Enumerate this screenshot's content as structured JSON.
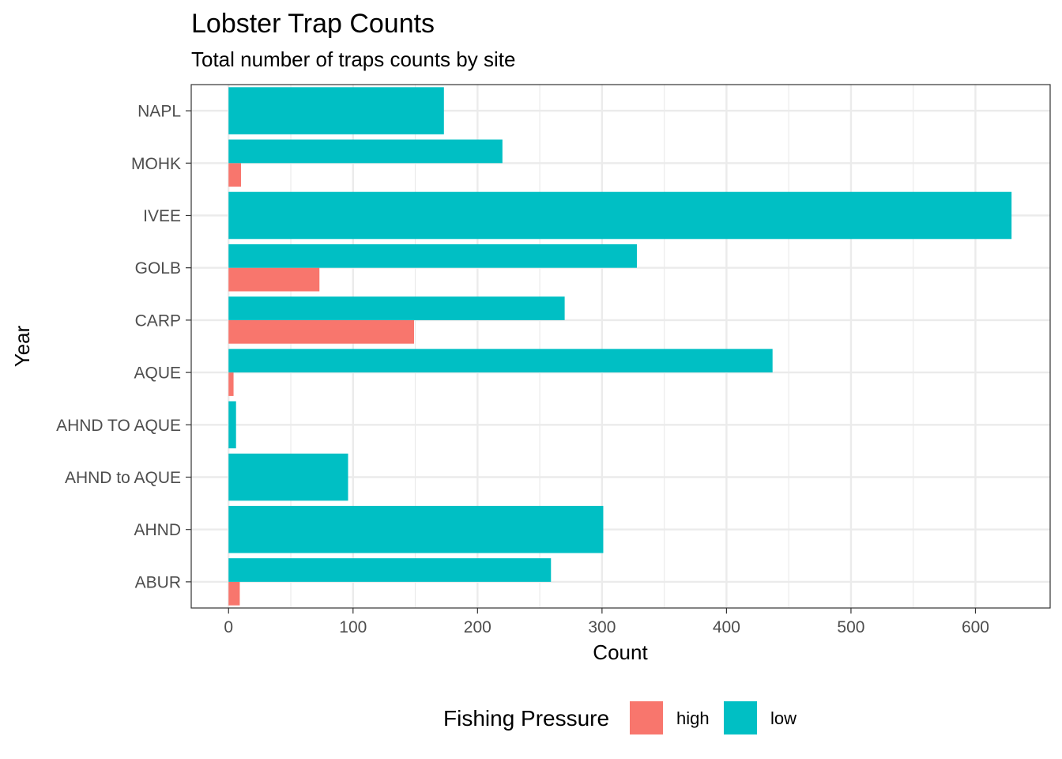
{
  "chart_data": {
    "type": "bar",
    "orientation": "horizontal",
    "position": "dodge",
    "title": "Lobster Trap Counts",
    "subtitle": "Total number of traps counts by site",
    "xlabel": "Count",
    "ylabel": "Year",
    "xlim": [
      -30,
      660
    ],
    "x_ticks": [
      0,
      100,
      200,
      300,
      400,
      500,
      600
    ],
    "grid": true,
    "categories": [
      "ABUR",
      "AHND",
      "AHND to AQUE",
      "AHND TO AQUE",
      "AQUE",
      "CARP",
      "GOLB",
      "IVEE",
      "MOHK",
      "NAPL"
    ],
    "series": [
      {
        "name": "high",
        "color": "#F8766D",
        "values": [
          9,
          null,
          null,
          null,
          4,
          149,
          73,
          null,
          10,
          null
        ]
      },
      {
        "name": "low",
        "color": "#00BFC4",
        "values": [
          259,
          301,
          96,
          6,
          437,
          270,
          328,
          629,
          220,
          173
        ]
      }
    ],
    "legend": {
      "title": "Fishing Pressure",
      "position": "bottom",
      "entries": [
        "high",
        "low"
      ]
    }
  }
}
